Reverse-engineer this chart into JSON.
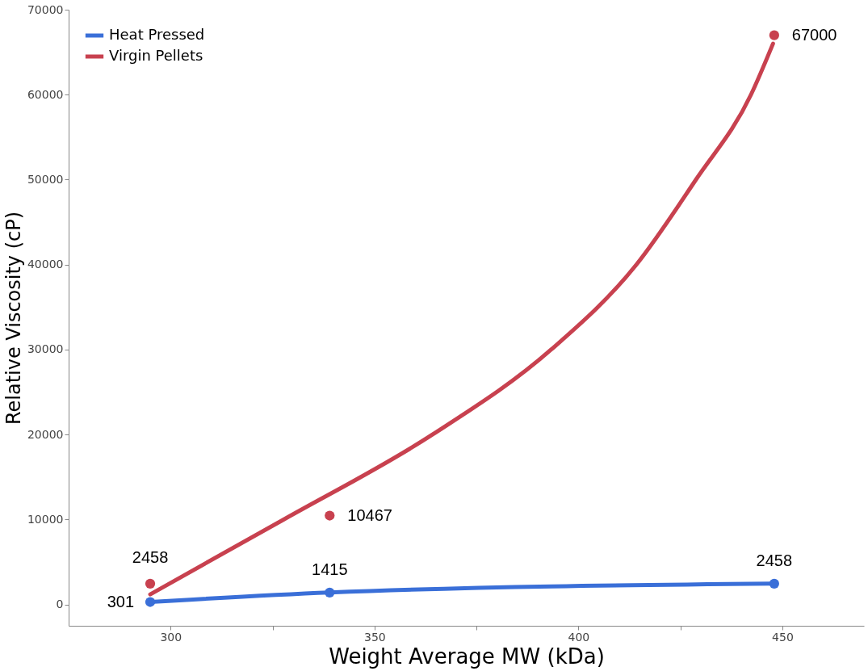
{
  "chart_data": {
    "type": "line",
    "xlabel": "Weight Average MW (kDa)",
    "ylabel": "Relative Viscosity (cP)",
    "xlim": [
      275,
      470
    ],
    "ylim": [
      -2500,
      70000
    ],
    "xticks": [
      300,
      {
        "value": 325,
        "label": null
      },
      350,
      {
        "value": 375,
        "label": null
      },
      400,
      {
        "value": 425,
        "label": null
      },
      450
    ],
    "yticks": [
      0,
      10000,
      20000,
      30000,
      40000,
      50000,
      60000,
      70000
    ],
    "grid": false,
    "legend": "top left",
    "series": [
      {
        "name": "Heat Pressed",
        "color": "#3a6fd8",
        "marker": "circle",
        "x": [
          295,
          339,
          448
        ],
        "values": [
          301,
          1415,
          2458
        ],
        "value_labels": [
          "301",
          "1415",
          "2458"
        ]
      },
      {
        "name": "Virgin Pellets",
        "color": "#c8414f",
        "marker": "none",
        "x": [
          295,
          327.7,
          364.2,
          393.3,
          414.2,
          428.8,
          442.3,
          447.7
        ],
        "values": [
          1200,
          10000,
          20000,
          30000,
          40000,
          50000,
          60000,
          66000
        ]
      },
      {
        "type": "scatter",
        "color": "#c8414f",
        "marker": "circle",
        "x": [
          295,
          339,
          448
        ],
        "values": [
          2458,
          10467,
          67000
        ],
        "value_labels": [
          "2458",
          "10467",
          "67000"
        ]
      }
    ]
  }
}
